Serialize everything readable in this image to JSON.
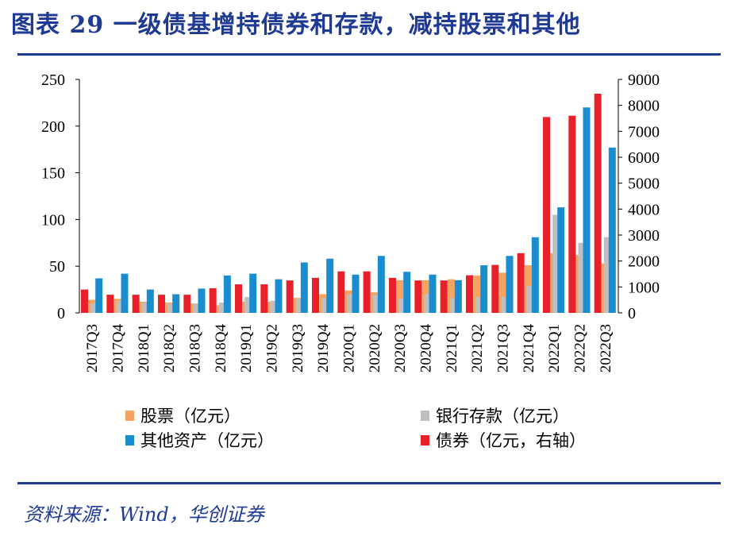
{
  "title": "图表 29  一级债基增持债券和存款，减持股票和其他",
  "source": "资料来源：Wind，华创证券",
  "chart_data": {
    "type": "bar",
    "categories": [
      "2017Q3",
      "2017Q4",
      "2018Q1",
      "2018Q2",
      "2018Q3",
      "2018Q4",
      "2019Q1",
      "2019Q2",
      "2019Q3",
      "2019Q4",
      "2020Q1",
      "2020Q2",
      "2020Q3",
      "2020Q4",
      "2021Q1",
      "2021Q2",
      "2021Q3",
      "2021Q4",
      "2022Q1",
      "2022Q2",
      "2022Q3"
    ],
    "left_axis": {
      "ylim": [
        0,
        250
      ],
      "ticks": [
        0,
        50,
        100,
        150,
        200,
        250
      ]
    },
    "right_axis": {
      "ylim": [
        0,
        9000
      ],
      "ticks": [
        0,
        1000,
        2000,
        3000,
        4000,
        5000,
        6000,
        7000,
        8000,
        9000
      ]
    },
    "series": [
      {
        "name": "股票（亿元）",
        "axis": "left",
        "color": "#f4a460",
        "values": [
          14,
          15,
          12,
          11,
          10,
          8,
          12,
          12,
          16,
          20,
          24,
          22,
          35,
          35,
          36,
          40,
          43,
          51,
          64,
          62,
          53
        ]
      },
      {
        "name": "银行存款（亿元）",
        "axis": "left",
        "color": "#bfbfbf",
        "values": [
          10,
          13,
          11,
          10,
          10,
          11,
          17,
          13,
          15,
          16,
          20,
          19,
          15,
          20,
          16,
          17,
          17,
          29,
          105,
          75,
          81
        ]
      },
      {
        "name": "其他资产（亿元）",
        "axis": "left",
        "color": "#1a8dd0",
        "values": [
          37,
          42,
          25,
          20,
          26,
          40,
          42,
          36,
          54,
          58,
          41,
          61,
          44,
          41,
          35,
          51,
          61,
          81,
          113,
          220,
          177
        ]
      },
      {
        "name": "债券（亿元，右轴）",
        "axis": "right",
        "color": "#e8202a",
        "values": [
          900,
          700,
          700,
          700,
          700,
          950,
          1100,
          1100,
          1250,
          1350,
          1600,
          1600,
          1350,
          1250,
          1250,
          1450,
          1850,
          2300,
          7550,
          7600,
          8450
        ]
      }
    ],
    "legend": [
      "股票（亿元）",
      "银行存款（亿元）",
      "其他资产（亿元）",
      "债券（亿元，右轴）"
    ],
    "legend_position": "bottom"
  }
}
